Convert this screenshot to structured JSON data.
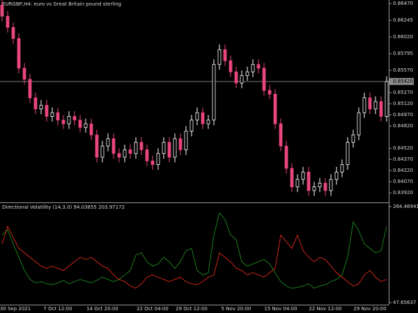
{
  "chart_data": [
    {
      "type": "candlestick",
      "title": "EURGBP,H4: euro vs Great Britain pound sterling",
      "up_color": "#ffffff",
      "down_color": "#e8467c",
      "categories": [
        null,
        null,
        "30 Sep 2021",
        null,
        null,
        null,
        null,
        null,
        null,
        null,
        "7 Oct 12:00",
        null,
        null,
        null,
        null,
        null,
        null,
        null,
        "14 Oct 20:00",
        null,
        null,
        null,
        null,
        null,
        null,
        null,
        null,
        "22 Oct 04:00",
        null,
        null,
        null,
        null,
        null,
        null,
        "29 Oct 12:00",
        null,
        null,
        null,
        null,
        null,
        null,
        null,
        "5 Nov 20:00",
        null,
        null,
        null,
        null,
        null,
        null,
        null,
        "15 Nov 04:00",
        null,
        null,
        null,
        null,
        null,
        null,
        null,
        "22 Nov 12:00",
        null,
        null,
        null,
        null,
        null,
        null,
        null,
        "29 Nov 20:00",
        null,
        null,
        null
      ],
      "open": [
        0.8645,
        0.863,
        0.8615,
        0.86,
        0.856,
        0.8545,
        0.852,
        0.8505,
        0.851,
        0.8495,
        0.85,
        0.849,
        0.8485,
        0.8495,
        0.849,
        0.848,
        0.8485,
        0.847,
        0.844,
        0.8455,
        0.8465,
        0.8445,
        0.844,
        0.845,
        0.8445,
        0.846,
        0.845,
        0.8435,
        0.843,
        0.8445,
        0.846,
        0.844,
        0.8465,
        0.845,
        0.8475,
        0.849,
        0.85,
        0.8485,
        0.849,
        0.8565,
        0.8585,
        0.857,
        0.8555,
        0.854,
        0.855,
        0.8555,
        0.8565,
        0.856,
        0.853,
        0.8525,
        0.8485,
        0.8455,
        0.8425,
        0.84,
        0.841,
        0.842,
        0.8395,
        0.84,
        0.8405,
        0.8395,
        0.841,
        0.842,
        0.843,
        0.846,
        0.847,
        0.85,
        0.852,
        0.8505,
        0.8515,
        0.8495
      ],
      "high": [
        0.8652,
        0.8637,
        0.8622,
        0.8607,
        0.8567,
        0.8552,
        0.8527,
        0.8517,
        0.8517,
        0.8507,
        0.8507,
        0.8497,
        0.8502,
        0.8502,
        0.8497,
        0.8492,
        0.8492,
        0.8477,
        0.8462,
        0.8472,
        0.8472,
        0.8452,
        0.8457,
        0.8457,
        0.8467,
        0.8467,
        0.8457,
        0.8442,
        0.8452,
        0.8467,
        0.8467,
        0.8472,
        0.8472,
        0.8482,
        0.8497,
        0.8507,
        0.8507,
        0.8497,
        0.8572,
        0.8592,
        0.8592,
        0.8577,
        0.8562,
        0.8557,
        0.8562,
        0.8572,
        0.8572,
        0.8567,
        0.8537,
        0.8532,
        0.8492,
        0.8462,
        0.8432,
        0.8417,
        0.8427,
        0.8427,
        0.8407,
        0.8412,
        0.8412,
        0.8417,
        0.8427,
        0.8437,
        0.8467,
        0.8477,
        0.8507,
        0.8527,
        0.8527,
        0.8522,
        0.8522,
        0.8549
      ],
      "low": [
        0.8623,
        0.8608,
        0.8593,
        0.8553,
        0.8538,
        0.8513,
        0.8498,
        0.8498,
        0.8488,
        0.8488,
        0.8483,
        0.8478,
        0.8478,
        0.8483,
        0.8473,
        0.8473,
        0.8463,
        0.8433,
        0.8433,
        0.8448,
        0.8438,
        0.8433,
        0.8433,
        0.8438,
        0.8438,
        0.8443,
        0.8428,
        0.8423,
        0.8423,
        0.8438,
        0.8433,
        0.8433,
        0.8443,
        0.8443,
        0.8468,
        0.8483,
        0.8478,
        0.8478,
        0.8483,
        0.8558,
        0.8563,
        0.8548,
        0.8533,
        0.8533,
        0.8543,
        0.8548,
        0.8553,
        0.8523,
        0.8518,
        0.8478,
        0.8448,
        0.8418,
        0.8393,
        0.8393,
        0.8403,
        0.8388,
        0.8388,
        0.8393,
        0.8388,
        0.8388,
        0.8403,
        0.8413,
        0.8423,
        0.8453,
        0.8463,
        0.8493,
        0.8498,
        0.8498,
        0.8488,
        0.8488
      ],
      "close": [
        0.863,
        0.8615,
        0.86,
        0.856,
        0.8545,
        0.852,
        0.8505,
        0.851,
        0.8495,
        0.85,
        0.849,
        0.8485,
        0.8495,
        0.849,
        0.848,
        0.8485,
        0.847,
        0.844,
        0.8455,
        0.8465,
        0.8445,
        0.844,
        0.845,
        0.8445,
        0.846,
        0.845,
        0.8435,
        0.843,
        0.8445,
        0.846,
        0.844,
        0.8465,
        0.845,
        0.8475,
        0.849,
        0.85,
        0.8485,
        0.849,
        0.8565,
        0.8585,
        0.857,
        0.8555,
        0.854,
        0.855,
        0.8555,
        0.8565,
        0.856,
        0.853,
        0.8525,
        0.8485,
        0.8455,
        0.8425,
        0.84,
        0.841,
        0.842,
        0.8395,
        0.84,
        0.8405,
        0.8395,
        0.841,
        0.842,
        0.843,
        0.846,
        0.847,
        0.85,
        0.852,
        0.8505,
        0.8515,
        0.8495,
        0.8542
      ],
      "last_price": {
        "value": 0.8542,
        "label": "0.85420"
      },
      "ylim": [
        0.838,
        0.865
      ],
      "yticks": [
        {
          "value": 0.8647,
          "label": "0.86470"
        },
        0.86245,
        {
          "value": 0.8602,
          "label": "0.86020"
        },
        0.85795,
        {
          "value": 0.8557,
          "label": "0.85570"
        },
        {
          "value": 0.8527,
          "label": "0.85270"
        },
        {
          "value": 0.8512,
          "label": "0.85120"
        },
        {
          "value": 0.8497,
          "label": "0.84970"
        },
        {
          "value": 0.8482,
          "label": "0.84820"
        },
        {
          "value": 0.8452,
          "label": "0.84520"
        },
        {
          "value": 0.8437,
          "label": "0.84370"
        },
        {
          "value": 0.8422,
          "label": "0.84220"
        },
        {
          "value": 0.8407,
          "label": "0.84070"
        },
        {
          "value": 0.8392,
          "label": "0.83920"
        }
      ]
    },
    {
      "type": "line",
      "title": "Directional Volatility (14,3.0) 94.03855 203.97172",
      "series": [
        {
          "color": "#1f8a1f",
          "values": [
            200,
            212,
            180,
            150,
            120,
            100,
            92,
            95,
            90,
            88,
            92,
            98,
            90,
            95,
            100,
            96,
            92,
            98,
            105,
            100,
            95,
            100,
            110,
            120,
            155,
            160,
            140,
            130,
            135,
            150,
            140,
            125,
            140,
            165,
            170,
            120,
            110,
            115,
            200,
            250,
            235,
            200,
            190,
            140,
            130,
            135,
            140,
            145,
            135,
            115,
            95,
            85,
            80,
            82,
            85,
            90,
            80,
            85,
            88,
            95,
            100,
            110,
            150,
            230,
            210,
            180,
            170,
            160,
            165,
            220
          ]
        },
        {
          "color": "#e02a1a",
          "values": [
            180,
            220,
            195,
            170,
            160,
            150,
            140,
            130,
            125,
            130,
            125,
            120,
            130,
            140,
            150,
            145,
            150,
            140,
            130,
            125,
            110,
            100,
            95,
            85,
            80,
            90,
            105,
            110,
            105,
            100,
            95,
            100,
            105,
            95,
            90,
            88,
            95,
            105,
            110,
            160,
            150,
            140,
            125,
            120,
            110,
            115,
            110,
            105,
            115,
            125,
            200,
            185,
            170,
            200,
            165,
            150,
            140,
            150,
            145,
            130,
            115,
            105,
            95,
            85,
            90,
            110,
            120,
            105,
            95,
            100
          ]
        }
      ],
      "ylim": [
        47.65637,
        264.46941
      ],
      "yticks": [
        264.46941,
        47.65637
      ]
    }
  ]
}
